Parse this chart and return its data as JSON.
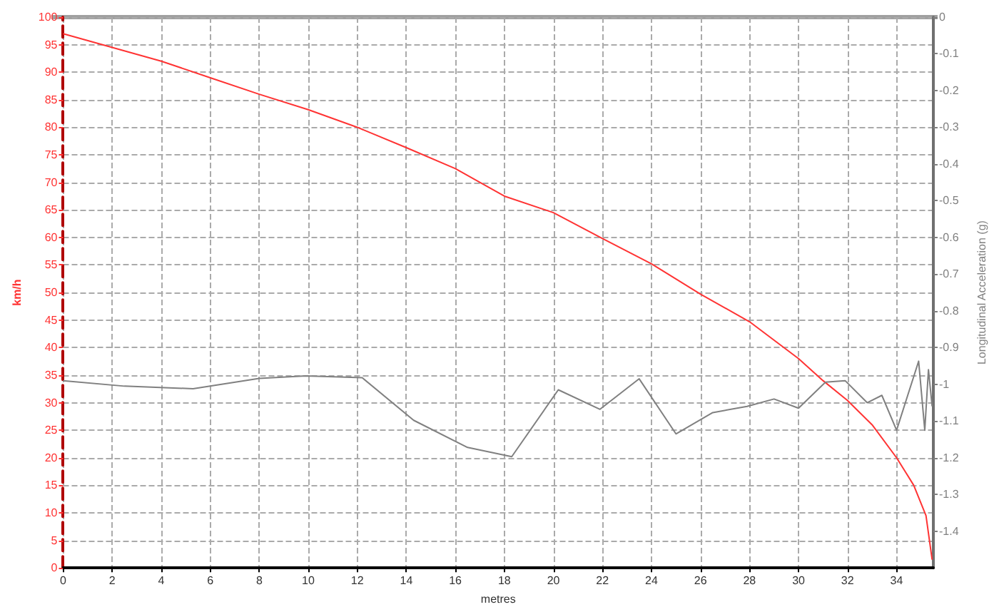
{
  "chart_data": {
    "type": "line",
    "xlabel": "metres",
    "ylabel": "km/h",
    "y2label": "Longitudinal Acceleration (g)",
    "xlim": [
      0,
      35.5
    ],
    "xticks": [
      0,
      2,
      4,
      6,
      8,
      10,
      12,
      14,
      16,
      18,
      20,
      22,
      24,
      26,
      28,
      30,
      32,
      34
    ],
    "ylim": [
      0,
      100
    ],
    "yticks": [
      0,
      5,
      10,
      15,
      20,
      25,
      30,
      35,
      40,
      45,
      50,
      55,
      60,
      65,
      70,
      75,
      80,
      85,
      90,
      95,
      100
    ],
    "y2lim": [
      -1.5,
      0
    ],
    "y2ticks": [
      -1.4,
      -1.3,
      -1.2,
      -1.1,
      -1,
      -0.9,
      -0.8,
      -0.7,
      -0.6,
      -0.5,
      -0.4,
      -0.3,
      -0.2,
      -0.1,
      0
    ],
    "grid": true,
    "marker": "none",
    "line_style": "solid",
    "series": [
      {
        "color": "#ff3333",
        "x": [
          0,
          2,
          4,
          6,
          8,
          10,
          12,
          14,
          16,
          18,
          20,
          22,
          24,
          26,
          28,
          30,
          31,
          32,
          33,
          34,
          34.7,
          35.2,
          35.45
        ],
        "values": [
          97,
          94.5,
          92,
          89,
          86,
          83.2,
          80,
          76.3,
          72.5,
          67.5,
          64.5,
          59.8,
          55.2,
          49.7,
          44.7,
          38,
          34,
          30.4,
          26,
          20,
          15,
          9.5,
          1.5
        ]
      },
      {
        "color": "#808080",
        "axis": "y2",
        "x": [
          0,
          2.5,
          5.3,
          8,
          9.9,
          12.2,
          14.3,
          16.5,
          18.3,
          20.2,
          21.9,
          23.5,
          25,
          26.5,
          27.9,
          29,
          30,
          31.1,
          31.9,
          32.8,
          33.4,
          34,
          34.9,
          35.15,
          35.3,
          35.45
        ],
        "values": [
          -0.99,
          -1.005,
          -1.012,
          -0.984,
          -0.977,
          -0.982,
          -1.098,
          -1.172,
          -1.197,
          -1.015,
          -1.068,
          -0.985,
          -1.135,
          -1.077,
          -1.06,
          -1.04,
          -1.065,
          -0.994,
          -0.99,
          -1.05,
          -1.03,
          -1.125,
          -0.937,
          -1.125,
          -0.96,
          -1.06
        ]
      }
    ]
  }
}
